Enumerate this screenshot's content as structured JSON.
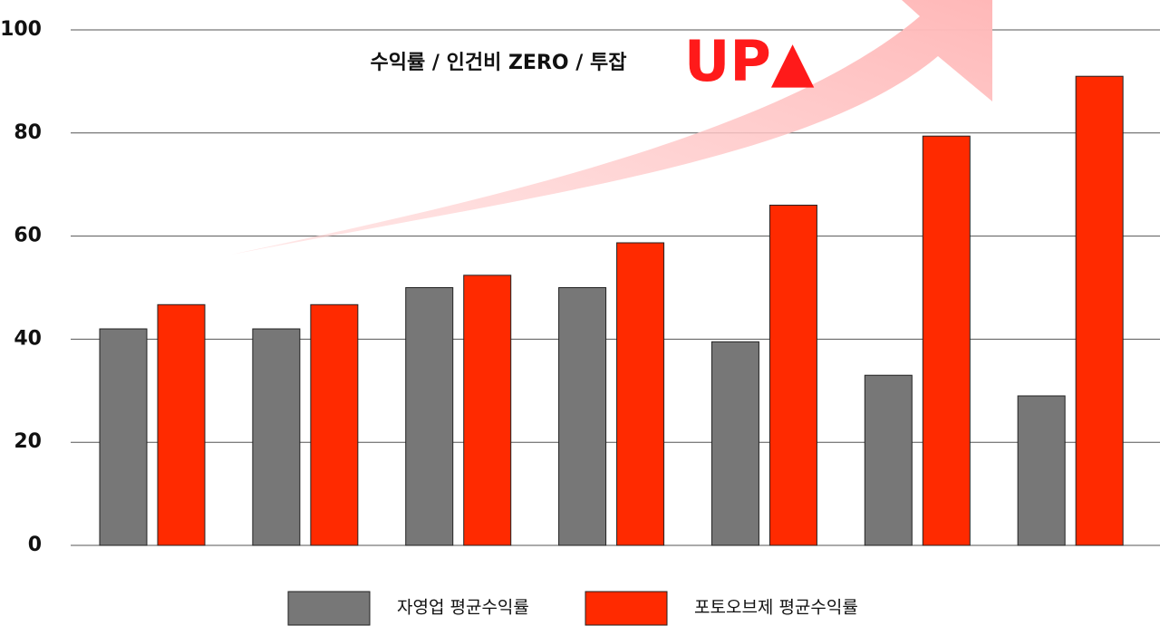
{
  "chart_data": {
    "type": "bar",
    "annotation": "수익률 / 인건비 ZERO / 투잡",
    "annotation_emphasis": "UP▲",
    "categories": [
      null,
      null,
      null,
      null,
      null,
      null,
      null
    ],
    "series": [
      {
        "name": "자영업 평균수익률",
        "color": "#777777",
        "values": [
          42,
          42,
          50,
          50,
          39.5,
          33,
          29
        ]
      },
      {
        "name": "포토오브제 평균수익률",
        "color": "#ff2a00",
        "values": [
          46.7,
          46.7,
          52.4,
          58.7,
          66,
          79.4,
          91
        ]
      }
    ],
    "ylim": [
      0,
      100
    ],
    "yticks": [
      0,
      20,
      40,
      60,
      80,
      100
    ],
    "grid": true
  }
}
